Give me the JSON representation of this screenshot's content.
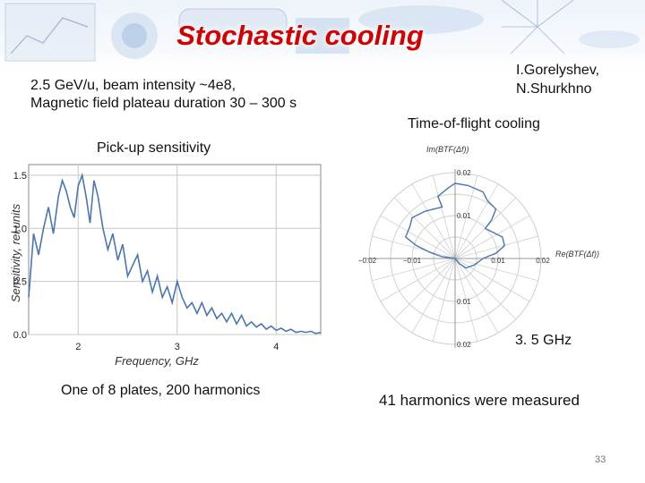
{
  "slide": {
    "title": "Stochastic cooling",
    "params_line1": "2.5 GeV/u, beam intensity ~4e8,",
    "params_line2": "Magnetic field plateau duration 30 – 300 s",
    "authors_line1": "I.Gorelyshev,",
    "authors_line2": "N.Shurkhno",
    "tof_label": "Time-of-flight cooling",
    "pickup_label": "Pick-up sensitivity",
    "freq_label": "3. 5 GHz",
    "caption_left": "One of 8 plates, 200 harmonics",
    "caption_right": "41 harmonics were measured",
    "page_number": "33"
  },
  "colors": {
    "title": "#d40000",
    "curve": "#4a76b4",
    "grid": "#c8c8c8",
    "polar_grid": "#cfcfcf"
  },
  "chart_data": [
    {
      "type": "line",
      "title": "",
      "xlabel": "Frequency, GHz",
      "ylabel": "Sensitivity, rel.units",
      "xlim": [
        1.5,
        4.45
      ],
      "ylim": [
        0,
        1.6
      ],
      "xticks": [
        "2",
        "3",
        "4"
      ],
      "yticks": [
        "0.0",
        "0.5",
        "1.0",
        "1.5"
      ],
      "grid": true,
      "series": [
        {
          "x": [
            1.5,
            1.55,
            1.6,
            1.65,
            1.7,
            1.75,
            1.8,
            1.84,
            1.88,
            1.92,
            1.96,
            2.0,
            2.04,
            2.08,
            2.12,
            2.16,
            2.2,
            2.25,
            2.3,
            2.35,
            2.4,
            2.45,
            2.5,
            2.55,
            2.6,
            2.65,
            2.7,
            2.75,
            2.8,
            2.85,
            2.9,
            2.95,
            3.0,
            3.05,
            3.1,
            3.15,
            3.2,
            3.25,
            3.3,
            3.35,
            3.4,
            3.45,
            3.5,
            3.55,
            3.6,
            3.65,
            3.7,
            3.75,
            3.8,
            3.85,
            3.9,
            3.95,
            4.0,
            4.05,
            4.1,
            4.15,
            4.2,
            4.25,
            4.3,
            4.35,
            4.4,
            4.45
          ],
          "values": [
            0.35,
            0.95,
            0.75,
            1.0,
            1.2,
            0.95,
            1.3,
            1.45,
            1.35,
            1.2,
            1.1,
            1.4,
            1.5,
            1.3,
            1.05,
            1.45,
            1.3,
            1.0,
            0.8,
            0.95,
            0.7,
            0.85,
            0.55,
            0.65,
            0.75,
            0.5,
            0.6,
            0.4,
            0.55,
            0.35,
            0.45,
            0.3,
            0.5,
            0.35,
            0.25,
            0.3,
            0.2,
            0.3,
            0.18,
            0.25,
            0.15,
            0.2,
            0.12,
            0.2,
            0.1,
            0.18,
            0.08,
            0.12,
            0.07,
            0.1,
            0.05,
            0.08,
            0.04,
            0.06,
            0.03,
            0.05,
            0.02,
            0.03,
            0.02,
            0.03,
            0.01,
            0.02
          ]
        }
      ]
    },
    {
      "type": "polar",
      "title": "",
      "xlabel": "Re(BTF(Δf))",
      "ylabel": "Im(BTF(Δf))",
      "xlim": [
        -0.02,
        0.02
      ],
      "ylim": [
        -0.02,
        0.02
      ],
      "xticks": [
        "-0.02",
        "-0.01",
        "0.01",
        "0.02"
      ],
      "yticks": [
        "0.02",
        "0.01",
        "0.01",
        "0.02"
      ],
      "grid": true,
      "series": [
        {
          "x": [
            0.0,
            -0.003,
            -0.006,
            -0.009,
            -0.0115,
            -0.0105,
            -0.01,
            -0.007,
            -0.003,
            -0.004,
            -0.0015,
            0.0,
            0.003,
            0.0065,
            0.0075,
            0.0095,
            0.0085,
            0.007,
            0.011,
            0.0115,
            0.0095,
            0.0065,
            0.0045,
            0.0025,
            0.001,
            0.0
          ],
          "y": [
            0.0,
            0.0004,
            0.0015,
            0.003,
            0.005,
            0.0075,
            0.0095,
            0.011,
            0.012,
            0.0145,
            0.0165,
            0.0175,
            0.017,
            0.0155,
            0.0135,
            0.0115,
            0.009,
            0.007,
            0.005,
            0.003,
            0.0012,
            0.0,
            -0.0015,
            -0.0022,
            -0.0012,
            0.0
          ]
        }
      ]
    }
  ]
}
